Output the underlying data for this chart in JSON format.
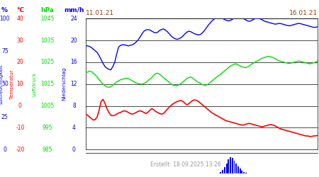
{
  "date_left": "11.01.21",
  "date_right": "16.01.21",
  "footer_text": "Erstellt: 18.09.2025 13:26",
  "unit_pct": "%",
  "unit_temp": "°C",
  "unit_hpa": "hPa",
  "unit_mmh": "mm/h",
  "label_luftfeuchte": "Luftfeuchtigkeit",
  "label_temp": "Temperatur",
  "label_luftdruck": "Luftdruck",
  "label_niederschlag": "Niederschlag",
  "color_blue": "#0000ff",
  "color_red": "#ff0000",
  "color_green": "#00dd00",
  "color_grid": "#000000",
  "color_footer": "#999999",
  "color_date": "#8B4513",
  "pct_ticks": [
    0,
    25,
    50,
    75,
    100
  ],
  "temp_ticks": [
    -20,
    -10,
    0,
    10,
    20,
    30,
    40
  ],
  "hpa_ticks": [
    985,
    995,
    1005,
    1015,
    1025,
    1035,
    1045
  ],
  "mmh_ticks": [
    0,
    4,
    8,
    12,
    16,
    20,
    24
  ],
  "ylim": [
    0,
    24
  ],
  "blue_y": [
    19.0,
    19.0,
    18.9,
    18.7,
    18.4,
    18.1,
    17.8,
    17.2,
    16.5,
    15.8,
    15.2,
    14.9,
    14.7,
    14.6,
    15.2,
    16.0,
    17.5,
    18.8,
    19.1,
    19.2,
    19.2,
    19.1,
    19.0,
    19.1,
    19.2,
    19.4,
    19.7,
    20.1,
    20.6,
    21.2,
    21.7,
    21.9,
    22.0,
    21.9,
    21.7,
    21.5,
    21.4,
    21.5,
    21.8,
    22.0,
    22.1,
    21.9,
    21.6,
    21.2,
    20.8,
    20.5,
    20.3,
    20.2,
    20.3,
    20.5,
    20.8,
    21.2,
    21.5,
    21.7,
    21.6,
    21.4,
    21.2,
    21.1,
    21.0,
    21.1,
    21.4,
    21.8,
    22.3,
    22.8,
    23.2,
    23.6,
    23.9,
    24.1,
    24.2,
    24.2,
    24.1,
    23.9,
    23.7,
    23.6,
    23.6,
    23.8,
    24.0,
    24.2,
    24.3,
    24.3,
    24.2,
    24.0,
    23.8,
    23.6,
    23.5,
    23.6,
    23.8,
    24.0,
    24.1,
    24.0,
    23.9,
    23.7,
    23.5,
    23.4,
    23.3,
    23.2,
    23.1,
    23.0,
    23.0,
    23.1,
    23.1,
    23.0,
    22.9,
    22.8,
    22.7,
    22.7,
    22.8,
    22.9,
    23.0,
    23.1,
    23.1,
    23.0,
    22.9,
    22.8,
    22.7,
    22.6,
    22.5,
    22.4,
    22.4,
    22.5
  ],
  "green_y": [
    14.0,
    14.2,
    14.4,
    14.3,
    14.0,
    13.7,
    13.3,
    12.8,
    12.4,
    12.0,
    11.7,
    11.5,
    11.4,
    11.5,
    11.8,
    12.1,
    12.4,
    12.6,
    12.8,
    12.9,
    13.0,
    13.1,
    13.0,
    12.8,
    12.6,
    12.4,
    12.2,
    12.1,
    12.0,
    12.0,
    12.1,
    12.3,
    12.6,
    12.9,
    13.2,
    13.6,
    13.9,
    14.0,
    13.8,
    13.5,
    13.2,
    12.9,
    12.6,
    12.3,
    12.0,
    11.8,
    11.7,
    11.7,
    11.9,
    12.1,
    12.4,
    12.7,
    13.0,
    13.2,
    13.3,
    13.1,
    12.8,
    12.5,
    12.3,
    12.1,
    11.9,
    11.8,
    11.8,
    12.0,
    12.3,
    12.6,
    12.9,
    13.2,
    13.5,
    13.7,
    14.0,
    14.3,
    14.6,
    14.9,
    15.2,
    15.4,
    15.6,
    15.7,
    15.6,
    15.4,
    15.2,
    15.1,
    15.0,
    15.1,
    15.3,
    15.6,
    15.8,
    16.0,
    16.2,
    16.4,
    16.6,
    16.8,
    16.9,
    17.0,
    17.1,
    17.0,
    16.9,
    16.7,
    16.5,
    16.3,
    16.2,
    16.1,
    16.0,
    15.9,
    15.8,
    15.8,
    15.9,
    16.0,
    16.1,
    16.2,
    16.2,
    16.1,
    16.0,
    15.9,
    15.8,
    15.7,
    15.8,
    15.9,
    16.0,
    16.2
  ],
  "red_y": [
    6.5,
    6.3,
    6.0,
    5.7,
    5.4,
    5.5,
    6.0,
    7.2,
    8.8,
    9.2,
    8.5,
    7.5,
    6.8,
    6.3,
    6.2,
    6.3,
    6.5,
    6.7,
    6.8,
    7.0,
    7.1,
    7.0,
    6.8,
    6.6,
    6.5,
    6.6,
    6.8,
    7.0,
    7.1,
    7.0,
    6.8,
    6.6,
    6.8,
    7.2,
    7.5,
    7.3,
    7.0,
    6.8,
    6.6,
    6.5,
    6.6,
    7.0,
    7.4,
    7.8,
    8.1,
    8.4,
    8.6,
    8.8,
    8.9,
    9.0,
    8.8,
    8.5,
    8.2,
    8.4,
    8.7,
    9.0,
    9.1,
    9.0,
    8.8,
    8.5,
    8.2,
    7.9,
    7.6,
    7.3,
    7.0,
    6.7,
    6.5,
    6.3,
    6.1,
    5.9,
    5.7,
    5.5,
    5.3,
    5.2,
    5.1,
    5.0,
    4.9,
    4.8,
    4.7,
    4.6,
    4.5,
    4.5,
    4.6,
    4.7,
    4.8,
    4.7,
    4.6,
    4.5,
    4.4,
    4.3,
    4.2,
    4.2,
    4.3,
    4.4,
    4.5,
    4.6,
    4.5,
    4.4,
    4.2,
    4.0,
    3.8,
    3.7,
    3.6,
    3.5,
    3.4,
    3.3,
    3.2,
    3.1,
    3.0,
    2.9,
    2.8,
    2.7,
    2.6,
    2.5,
    2.5,
    2.4,
    2.4,
    2.5,
    2.5,
    2.6
  ],
  "bar_x": [
    70,
    71,
    72,
    73,
    74,
    75,
    76,
    77,
    78,
    79,
    80,
    81,
    82,
    83
  ],
  "bar_h": [
    0.3,
    0.8,
    1.5,
    2.5,
    3.5,
    4.0,
    3.8,
    3.2,
    2.5,
    1.8,
    1.2,
    0.7,
    0.3,
    0.1
  ],
  "n": 120
}
